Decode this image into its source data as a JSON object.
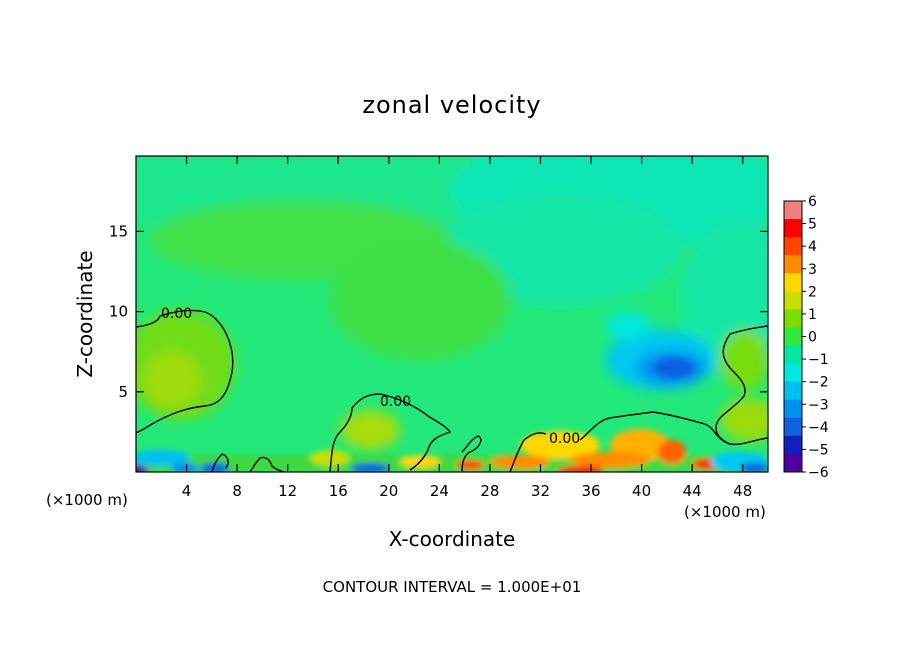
{
  "chart_data": {
    "type": "heatmap",
    "title": "zonal velocity",
    "xlabel": "X-coordinate",
    "ylabel": "Z-coordinate",
    "x_unit_left": "(×1000 m)",
    "x_unit_right": "(×1000 m)",
    "footer": "CONTOUR INTERVAL = 1.000E+01",
    "xlim": [
      0,
      50
    ],
    "ylim": [
      0,
      19.7
    ],
    "x_ticks": [
      "4",
      "8",
      "12",
      "16",
      "20",
      "24",
      "28",
      "32",
      "36",
      "40",
      "44",
      "48"
    ],
    "x_tick_values": [
      4,
      8,
      12,
      16,
      20,
      24,
      28,
      32,
      36,
      40,
      44,
      48
    ],
    "y_ticks": [
      "5",
      "10",
      "15"
    ],
    "y_tick_values": [
      5,
      10,
      15
    ],
    "contour_labels": [
      {
        "text": "0.00",
        "x": 3.5,
        "y": 10.0
      },
      {
        "text": "0.00",
        "x": 20.5,
        "y": 4.0
      },
      {
        "text": "0.00",
        "x": 33.8,
        "y": 1.7
      }
    ],
    "colorbar": {
      "levels": [
        "6",
        "5",
        "4",
        "3",
        "2",
        "1",
        "0",
        "−1",
        "−2",
        "−3",
        "−4",
        "−5",
        "−6"
      ],
      "colors": [
        "#f08080",
        "#ff0000",
        "#ff4500",
        "#ff8c00",
        "#ffd700",
        "#c8e000",
        "#7cdc00",
        "#30e840",
        "#00e8a0",
        "#00e8e0",
        "#00c0f0",
        "#0090f0",
        "#1060e0",
        "#1020c0",
        "#5000a0"
      ]
    },
    "grid": false,
    "legend": "right"
  }
}
